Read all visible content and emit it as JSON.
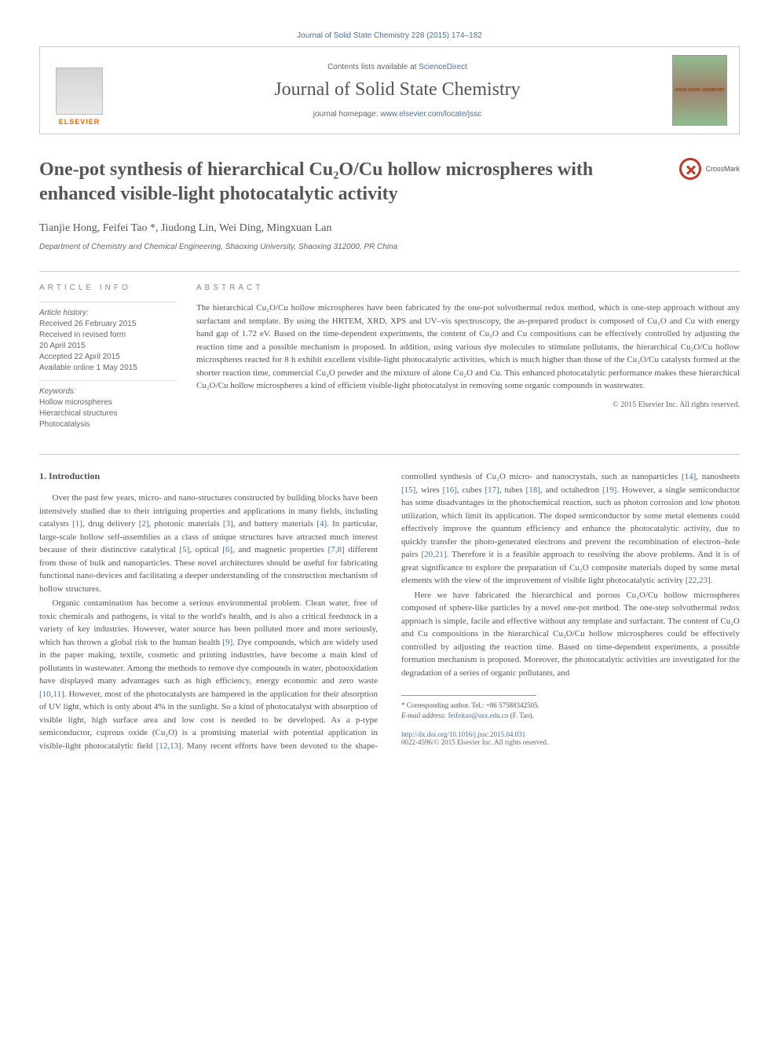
{
  "top_link": {
    "journal": "Journal of Solid State Chemistry",
    "vol": "228 (2015) 174–182"
  },
  "header": {
    "publisher_logo_text": "ELSEVIER",
    "contents_prefix": "Contents lists available at ",
    "contents_link": "ScienceDirect",
    "journal_name": "Journal of Solid State Chemistry",
    "homepage_prefix": "journal homepage: ",
    "homepage_url": "www.elsevier.com/locate/jssc",
    "cover_text": "SOLID STATE CHEMISTRY"
  },
  "title": "One-pot synthesis of hierarchical Cu₂O/Cu hollow microspheres with enhanced visible-light photocatalytic activity",
  "crossmark": "CrossMark",
  "authors": "Tianjie Hong, Feifei Tao *, Jiudong Lin, Wei Ding, Mingxuan Lan",
  "affiliation": "Department of Chemistry and Chemical Engineering, Shaoxing University, Shaoxing 312000, PR China",
  "article_info": {
    "heading": "ARTICLE INFO",
    "history_label": "Article history:",
    "history": "Received 26 February 2015\nReceived in revised form\n20 April 2015\nAccepted 22 April 2015\nAvailable online 1 May 2015",
    "keywords_label": "Keywords:",
    "keywords": "Hollow microspheres\nHierarchical structures\nPhotocatalysis"
  },
  "abstract": {
    "heading": "ABSTRACT",
    "text": "The hierarchical Cu₂O/Cu hollow microspheres have been fabricated by the one-pot solvothermal redox method, which is one-step approach without any surfactant and template. By using the HRTEM, XRD, XPS and UV–vis spectroscopy, the as-prepared product is composed of Cu₂O and Cu with energy band gap of 1.72 eV. Based on the time-dependent experiments, the content of Cu₂O and Cu compositions can be effectively controlled by adjusting the reaction time and a possible mechanism is proposed. In addition, using various dye molecules to stimulate pollutants, the hierarchical Cu₂O/Cu hollow microspheres reacted for 8 h exhibit excellent visible-light photocatalytic activities, which is much higher than those of the Cu₂O/Cu catalysts formed at the shorter reaction time, commercial Cu₂O powder and the mixture of alone Cu₂O and Cu. This enhanced photocatalytic performance makes these hierarchical Cu₂O/Cu hollow microspheres a kind of efficient visible-light photocatalyst in removing some organic compounds in wastewater.",
    "copyright": "© 2015 Elsevier Inc. All rights reserved."
  },
  "intro": {
    "heading": "1. Introduction",
    "p1_a": "Over the past few years, micro- and nano-structures constructed by building blocks have been intensively studied due to their intriguing properties and applications in many fields, including catalysts ",
    "c1": "[1]",
    "p1_b": ", drug delivery ",
    "c2": "[2]",
    "p1_c": ", photonic materials ",
    "c3": "[3]",
    "p1_d": ", and battery materials ",
    "c4": "[4]",
    "p1_e": ". In particular, large-scale hollow self-assemblies as a class of unique structures have attracted much interest because of their distinctive catalytical ",
    "c5": "[5]",
    "p1_f": ", optical ",
    "c6": "[6]",
    "p1_g": ", and magnetic properties ",
    "c78": "[7,8]",
    "p1_h": " different from those of bulk and nanoparticles. These novel architectures should be useful for fabricating functional nano-devices and facilitating a deeper understanding of the construction mechanism of hollow structures.",
    "p2_a": "Organic contamination has become a serious environmental problem. Clean water, free of toxic chemicals and pathogens, is vital to the world's health, and is also a critical feedstock in a variety of key industries. However, water source has been polluted more and more seriously, which has thrown a global risk to the human health ",
    "c9": "[9]",
    "p2_b": ". Dye compounds, which are widely used in the paper making, textile, cosmetic and printing industries, have become a main kind of pollutants in wastewater. Among the methods to remove dye compounds in water, photooxidation have displayed many advantages such as high efficiency, energy economic and zero waste ",
    "c1011": "[10,11]",
    "p2_c": ". However, most of the photocatalysts are hampered in the application",
    "p2_d": "for their absorption of UV light, which is only about 4% in the sunlight. So a kind of photocatalyst with absorption of visible light, high surface area and low cost is needed to be developed. As a p-type semiconductor, cuprous oxide (Cu₂O) is a promising material with potential application in visible-light photocatalytic field ",
    "c1213": "[12,13]",
    "p2_e": ". Many recent efforts have been devoted to the shape-controlled synthesis of Cu₂O micro- and nanocrystals, such as nanoparticles ",
    "c14": "[14]",
    "p2_f": ", nanosheets ",
    "c15": "[15]",
    "p2_g": ", wires ",
    "c16": "[16]",
    "p2_h": ", cubes ",
    "c17": "[17]",
    "p2_i": ", tubes ",
    "c18": "[18]",
    "p2_j": ", and octahedron ",
    "c19": "[19]",
    "p2_k": ". However, a single semiconductor has some disadvantages in the photochemical reaction, such as photon corrosion and low photon utilization, which limit its application. The doped semiconductor by some metal elements could effectively improve the quantum efficiency and enhance the photocatalytic activity, due to quickly transfer the photo-generated electrons and prevent the recombination of electron–hole pairs ",
    "c2021": "[20,21]",
    "p2_l": ". Therefore it is a feasible approach to resolving the above problems. And it is of great significance to explore the preparation of Cu₂O composite materials doped by some metal elements with the view of the improvement of visible light photocatalytic activity ",
    "c2223": "[22,23]",
    "p2_m": ".",
    "p3": "Here we have fabricated the hierarchical and porous Cu₂O/Cu hollow microspheres composed of sphere-like particles by a novel one-pot method. The one-step solvothermal redox approach is simple, facile and effective without any template and surfactant. The content of Cu₂O and Cu compositions in the hierarchical Cu₂O/Cu hollow microspheres could be effectively controlled by adjusting the reaction time. Based on time-dependent experiments, a possible formation mechanism is proposed. Moreover, the photocatalytic activities are investigated for the degradation of a series of organic pollutants, and"
  },
  "footnote": {
    "corr_label": "* Corresponding author. Tel.: ",
    "corr_phone": "+86 57588342505.",
    "email_label": "E-mail address: ",
    "email": "feifeitao@usx.edu.cn",
    "email_suffix": " (F. Tao)."
  },
  "doi": {
    "url": "http://dx.doi.org/10.1016/j.jssc.2015.04.031",
    "line": "0022-4596/© 2015 Elsevier Inc. All rights reserved."
  },
  "colors": {
    "link": "#4a6fa5",
    "text": "#555555",
    "muted": "#888888",
    "orange": "#ff6600"
  }
}
